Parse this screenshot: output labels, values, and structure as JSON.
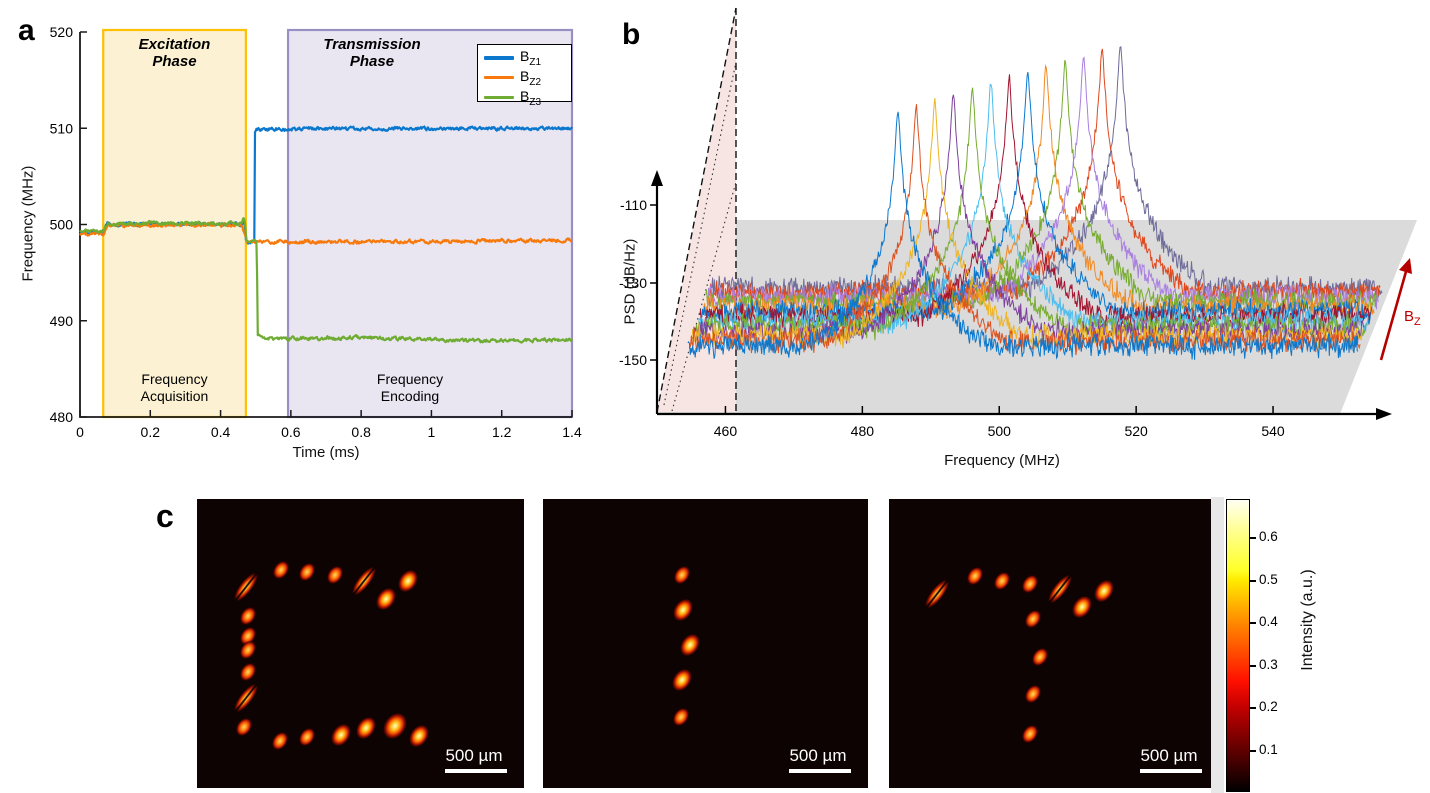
{
  "panels": {
    "a": "a",
    "b": "b",
    "c": "c"
  },
  "chart_data": [
    {
      "id": "a",
      "type": "line",
      "xlabel": "Time (ms)",
      "ylabel": "Frequency (MHz)",
      "xlim": [
        0,
        1.4
      ],
      "ylim": [
        480,
        520
      ],
      "xticks": [
        "0",
        "0.2",
        "0.4",
        "0.6",
        "0.8",
        "1",
        "1.2",
        "1.4"
      ],
      "yticks": [
        "480",
        "490",
        "500",
        "510",
        "520"
      ],
      "grid": false,
      "legend_position": "top-right",
      "regions": [
        {
          "name": "excitation",
          "title": [
            "Excitation",
            "Phase"
          ],
          "subtitle": [
            "Frequency",
            "Acquisition"
          ],
          "t0": 0.066,
          "t1": 0.472,
          "border": "#FFC000",
          "fill": "#FCF2D3"
        },
        {
          "name": "transmission",
          "title": [
            "Transmission",
            "Phase"
          ],
          "subtitle": [
            "Frequency",
            "Encoding"
          ],
          "t0": 0.592,
          "t1": 1.4,
          "border": "#9A8FC3",
          "fill": "#E9E6F2"
        }
      ],
      "series": [
        {
          "name": "BZ1",
          "name_base": "B",
          "name_sub": "Z1",
          "color": "#0B78CE",
          "points": [
            [
              0,
              499.2
            ],
            [
              0.066,
              499.2
            ],
            [
              0.078,
              500.05
            ],
            [
              0.462,
              500.05
            ],
            [
              0.468,
              500.3
            ],
            [
              0.472,
              498.6
            ],
            [
              0.478,
              498.15
            ],
            [
              0.49,
              498.3
            ],
            [
              0.496,
              498.4
            ],
            [
              0.4975,
              509.7
            ],
            [
              0.505,
              509.9
            ],
            [
              0.7,
              509.95
            ],
            [
              1.4,
              510.0
            ]
          ]
        },
        {
          "name": "BZ2",
          "name_base": "B",
          "name_sub": "Z2",
          "color": "#F8790B",
          "points": [
            [
              0,
              499.05
            ],
            [
              0.066,
              499.05
            ],
            [
              0.078,
              499.95
            ],
            [
              0.462,
              499.95
            ],
            [
              0.47,
              498.7
            ],
            [
              0.476,
              498.1
            ],
            [
              0.49,
              498.25
            ],
            [
              0.52,
              498.2
            ],
            [
              1.0,
              498.25
            ],
            [
              1.4,
              498.35
            ]
          ]
        },
        {
          "name": "BZ3",
          "name_base": "B",
          "name_sub": "Z3",
          "color": "#6FAC34",
          "points": [
            [
              0,
              499.3
            ],
            [
              0.066,
              499.3
            ],
            [
              0.078,
              500.1
            ],
            [
              0.46,
              500.1
            ],
            [
              0.465,
              500.55
            ],
            [
              0.469,
              500.1
            ],
            [
              0.473,
              498.4
            ],
            [
              0.482,
              497.95
            ],
            [
              0.492,
              498.3
            ],
            [
              0.503,
              498.35
            ],
            [
              0.5045,
              493.0
            ],
            [
              0.506,
              488.6
            ],
            [
              0.52,
              488.15
            ],
            [
              0.8,
              488.25
            ],
            [
              1.1,
              487.95
            ],
            [
              1.4,
              488.0
            ]
          ]
        }
      ]
    },
    {
      "id": "b",
      "type": "3d-line-waterfall",
      "xlabel": "Frequency (MHz)",
      "ylabel": "PSD (dB/Hz)",
      "xlim": [
        450,
        556
      ],
      "xticks": [
        460,
        480,
        500,
        520,
        540
      ],
      "yticks": [
        -110,
        -130,
        -150
      ],
      "depth_label_base": "B",
      "depth_label_sub": "Z",
      "depth_arrow_color": "#B50000",
      "noise_floor_db": -147,
      "series": [
        {
          "center_mhz": 485.2,
          "peak_db": -85.2,
          "color": "#0B78CE"
        },
        {
          "center_mhz": 487.6,
          "peak_db": -85.0,
          "color": "#DC5220"
        },
        {
          "center_mhz": 490.0,
          "peak_db": -84.8,
          "color": "#EFB421"
        },
        {
          "center_mhz": 492.4,
          "peak_db": -84.6,
          "color": "#7E3F9D"
        },
        {
          "center_mhz": 494.9,
          "peak_db": -84.4,
          "color": "#77AC30"
        },
        {
          "center_mhz": 497.3,
          "peak_db": -84.2,
          "color": "#4DBEEE"
        },
        {
          "center_mhz": 499.7,
          "peak_db": -84.0,
          "color": "#A2142F"
        },
        {
          "center_mhz": 502.1,
          "peak_db": -83.8,
          "color": "#0B78CE"
        },
        {
          "center_mhz": 504.5,
          "peak_db": -83.6,
          "color": "#F28A22"
        },
        {
          "center_mhz": 507.0,
          "peak_db": -83.4,
          "color": "#77AC30"
        },
        {
          "center_mhz": 509.4,
          "peak_db": -83.2,
          "color": "#A97FE0"
        },
        {
          "center_mhz": 511.8,
          "peak_db": -83.0,
          "color": "#E0481E"
        },
        {
          "center_mhz": 514.2,
          "peak_db": -82.8,
          "color": "#6F6C99"
        }
      ]
    },
    {
      "id": "c",
      "type": "heatmap-images",
      "colormap": "hot",
      "colorbar": {
        "label": "Intensity (a.u.)",
        "ticks": [
          0.1,
          0.2,
          0.3,
          0.4,
          0.5,
          0.6
        ],
        "max": 0.69
      },
      "images": [
        {
          "scale_bar_label": "500 µm",
          "dots": [
            [
              0.256,
              0.244,
              "dot"
            ],
            [
              0.337,
              0.251,
              "dot"
            ],
            [
              0.423,
              0.262,
              "dot"
            ],
            [
              0.511,
              0.285,
              "streak"
            ],
            [
              0.577,
              0.345,
              "bright"
            ],
            [
              0.645,
              0.285,
              "bright"
            ],
            [
              0.15,
              0.305,
              "streak"
            ],
            [
              0.155,
              0.405,
              "dot"
            ],
            [
              0.155,
              0.475,
              "dot"
            ],
            [
              0.157,
              0.523,
              "dot"
            ],
            [
              0.155,
              0.6,
              "dot"
            ],
            [
              0.15,
              0.69,
              "streak"
            ],
            [
              0.145,
              0.788,
              "dot"
            ],
            [
              0.253,
              0.839,
              "dot"
            ],
            [
              0.337,
              0.822,
              "dot"
            ],
            [
              0.44,
              0.816,
              "bright"
            ],
            [
              0.516,
              0.793,
              "bright"
            ],
            [
              0.605,
              0.787,
              "bright2"
            ],
            [
              0.68,
              0.82,
              "bright"
            ]
          ]
        },
        {
          "scale_bar_label": "500 µm",
          "dots": [
            [
              0.428,
              0.263,
              "dot"
            ],
            [
              0.43,
              0.384,
              "bright"
            ],
            [
              0.452,
              0.505,
              "bright"
            ],
            [
              0.428,
              0.626,
              "bright"
            ],
            [
              0.424,
              0.754,
              "dot"
            ]
          ]
        },
        {
          "scale_bar_label": "500 µm",
          "dots": [
            [
              0.145,
              0.329,
              "streak"
            ],
            [
              0.261,
              0.266,
              "dot"
            ],
            [
              0.342,
              0.284,
              "dot"
            ],
            [
              0.427,
              0.294,
              "dot"
            ],
            [
              0.518,
              0.311,
              "streak"
            ],
            [
              0.585,
              0.374,
              "bright"
            ],
            [
              0.652,
              0.318,
              "bright"
            ],
            [
              0.436,
              0.415,
              "dot"
            ],
            [
              0.458,
              0.547,
              "dot"
            ],
            [
              0.436,
              0.675,
              "dot"
            ],
            [
              0.427,
              0.813,
              "dot"
            ]
          ]
        }
      ]
    }
  ]
}
